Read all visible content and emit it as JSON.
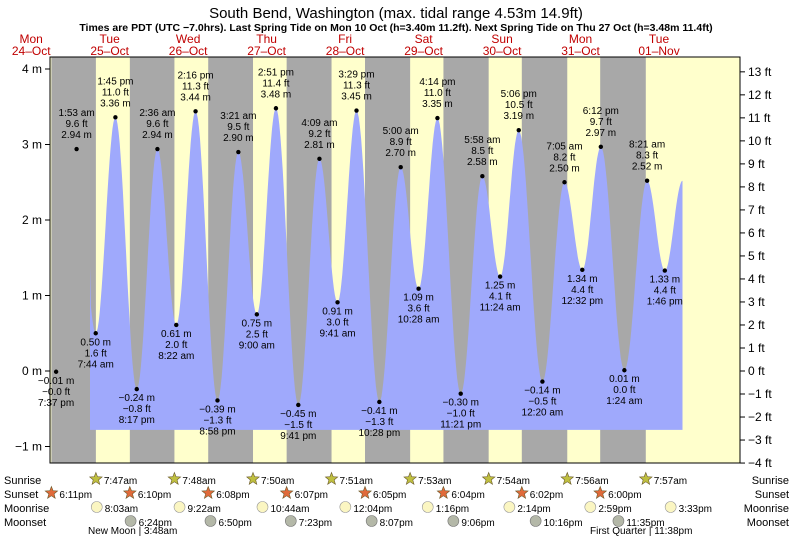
{
  "chart_data": {
    "type": "area",
    "title": "South Bend, Washington (max. tidal range 4.53m 14.9ft)",
    "subtitle": "Times are PDT (UTC −7.0hrs). Last Spring Tide on Mon 10 Oct (h=3.40m 11.2ft). Next Spring Tide on Thu 27 Oct (h=3.48m 11.4ft)",
    "days": [
      {
        "dow": "Mon",
        "date": "24–Oct"
      },
      {
        "dow": "Tue",
        "date": "25–Oct"
      },
      {
        "dow": "Wed",
        "date": "26–Oct"
      },
      {
        "dow": "Thu",
        "date": "27–Oct"
      },
      {
        "dow": "Fri",
        "date": "28–Oct"
      },
      {
        "dow": "Sat",
        "date": "29–Oct"
      },
      {
        "dow": "Sun",
        "date": "30–Oct"
      },
      {
        "dow": "Mon",
        "date": "31–Oct"
      },
      {
        "dow": "Tue",
        "date": "01–Nov"
      }
    ],
    "y_left": {
      "unit": "m",
      "ticks": [
        -1,
        0,
        1,
        2,
        3,
        4
      ],
      "labels": [
        "−1 m",
        "0 m",
        "1 m",
        "2 m",
        "3 m",
        "4 m"
      ],
      "range": [
        -1.25,
        4.12
      ]
    },
    "y_right": {
      "unit": "ft",
      "ticks": [
        -4,
        -3,
        -2,
        -1,
        0,
        1,
        2,
        3,
        4,
        5,
        6,
        7,
        8,
        9,
        10,
        11,
        12,
        13
      ],
      "labels": [
        "−4 ft",
        "−3 ft",
        "−2 ft",
        "−1 ft",
        "0 ft",
        "1 ft",
        "2 ft",
        "3 ft",
        "4 ft",
        "5 ft",
        "6 ft",
        "7 ft",
        "8 ft",
        "9 ft",
        "10 ft",
        "11 ft",
        "12 ft",
        "13 ft"
      ]
    },
    "tides": [
      {
        "day": 0,
        "t": 19.617,
        "m": -0.01,
        "label_m": "−0.01 m",
        "label_ft": "−0.0 ft",
        "label_time": "7:37 pm",
        "type": "low"
      },
      {
        "day": 1,
        "t": 1.883,
        "m": 2.94,
        "label_m": "2.94 m",
        "label_ft": "9.6 ft",
        "label_time": "1:53 am",
        "type": "high"
      },
      {
        "day": 1,
        "t": 7.733,
        "m": 0.5,
        "label_m": "0.50 m",
        "label_ft": "1.6 ft",
        "label_time": "7:44 am",
        "type": "low"
      },
      {
        "day": 1,
        "t": 13.75,
        "m": 3.36,
        "label_m": "3.36 m",
        "label_ft": "11.0 ft",
        "label_time": "1:45 pm",
        "type": "high"
      },
      {
        "day": 1,
        "t": 20.283,
        "m": -0.24,
        "label_m": "−0.24 m",
        "label_ft": "−0.8 ft",
        "label_time": "8:17 pm",
        "type": "low"
      },
      {
        "day": 2,
        "t": 2.6,
        "m": 2.94,
        "label_m": "2.94 m",
        "label_ft": "9.6 ft",
        "label_time": "2:36 am",
        "type": "high"
      },
      {
        "day": 2,
        "t": 8.367,
        "m": 0.61,
        "label_m": "0.61 m",
        "label_ft": "2.0 ft",
        "label_time": "8:22 am",
        "type": "low"
      },
      {
        "day": 2,
        "t": 14.267,
        "m": 3.44,
        "label_m": "3.44 m",
        "label_ft": "11.3 ft",
        "label_time": "2:16 pm",
        "type": "high"
      },
      {
        "day": 2,
        "t": 20.967,
        "m": -0.39,
        "label_m": "−0.39 m",
        "label_ft": "−1.3 ft",
        "label_time": "8:58 pm",
        "type": "low"
      },
      {
        "day": 3,
        "t": 3.35,
        "m": 2.9,
        "label_m": "2.90 m",
        "label_ft": "9.5 ft",
        "label_time": "3:21 am",
        "type": "high"
      },
      {
        "day": 3,
        "t": 9.0,
        "m": 0.75,
        "label_m": "0.75 m",
        "label_ft": "2.5 ft",
        "label_time": "9:00 am",
        "type": "low"
      },
      {
        "day": 3,
        "t": 14.85,
        "m": 3.48,
        "label_m": "3.48 m",
        "label_ft": "11.4 ft",
        "label_time": "2:51 pm",
        "type": "high"
      },
      {
        "day": 3,
        "t": 21.683,
        "m": -0.45,
        "label_m": "−0.45 m",
        "label_ft": "−1.5 ft",
        "label_time": "9:41 pm",
        "type": "low"
      },
      {
        "day": 4,
        "t": 4.15,
        "m": 2.81,
        "label_m": "2.81 m",
        "label_ft": "9.2 ft",
        "label_time": "4:09 am",
        "type": "high"
      },
      {
        "day": 4,
        "t": 9.683,
        "m": 0.91,
        "label_m": "0.91 m",
        "label_ft": "3.0 ft",
        "label_time": "9:41 am",
        "type": "low"
      },
      {
        "day": 4,
        "t": 15.483,
        "m": 3.45,
        "label_m": "3.45 m",
        "label_ft": "11.3 ft",
        "label_time": "3:29 pm",
        "type": "high"
      },
      {
        "day": 4,
        "t": 22.467,
        "m": -0.41,
        "label_m": "−0.41 m",
        "label_ft": "−1.3 ft",
        "label_time": "10:28 pm",
        "type": "low"
      },
      {
        "day": 5,
        "t": 5.0,
        "m": 2.7,
        "label_m": "2.70 m",
        "label_ft": "8.9 ft",
        "label_time": "5:00 am",
        "type": "high"
      },
      {
        "day": 5,
        "t": 10.467,
        "m": 1.09,
        "label_m": "1.09 m",
        "label_ft": "3.6 ft",
        "label_time": "10:28 am",
        "type": "low"
      },
      {
        "day": 5,
        "t": 16.233,
        "m": 3.35,
        "label_m": "3.35 m",
        "label_ft": "11.0 ft",
        "label_time": "4:14 pm",
        "type": "high"
      },
      {
        "day": 5,
        "t": 23.35,
        "m": -0.3,
        "label_m": "−0.30 m",
        "label_ft": "−1.0 ft",
        "label_time": "11:21 pm",
        "type": "low"
      },
      {
        "day": 6,
        "t": 5.967,
        "m": 2.58,
        "label_m": "2.58 m",
        "label_ft": "8.5 ft",
        "label_time": "5:58 am",
        "type": "high"
      },
      {
        "day": 6,
        "t": 11.4,
        "m": 1.25,
        "label_m": "1.25 m",
        "label_ft": "4.1 ft",
        "label_time": "11:24 am",
        "type": "low"
      },
      {
        "day": 6,
        "t": 17.1,
        "m": 3.19,
        "label_m": "3.19 m",
        "label_ft": "10.5 ft",
        "label_time": "5:06 pm",
        "type": "high"
      },
      {
        "day": 7,
        "t": 0.333,
        "m": -0.14,
        "label_m": "−0.14 m",
        "label_ft": "−0.5 ft",
        "label_time": "12:20 am",
        "type": "low"
      },
      {
        "day": 7,
        "t": 7.083,
        "m": 2.5,
        "label_m": "2.50 m",
        "label_ft": "8.2 ft",
        "label_time": "7:05 am",
        "type": "high"
      },
      {
        "day": 7,
        "t": 12.533,
        "m": 1.34,
        "label_m": "1.34 m",
        "label_ft": "4.4 ft",
        "label_time": "12:32 pm",
        "type": "low"
      },
      {
        "day": 7,
        "t": 18.2,
        "m": 2.97,
        "label_m": "2.97 m",
        "label_ft": "9.7 ft",
        "label_time": "6:12 pm",
        "type": "high"
      },
      {
        "day": 8,
        "t": 1.4,
        "m": 0.01,
        "label_m": "0.01 m",
        "label_ft": "0.0 ft",
        "label_time": "1:24 am",
        "type": "low"
      },
      {
        "day": 8,
        "t": 8.35,
        "m": 2.52,
        "label_m": "2.52 m",
        "label_ft": "8.3 ft",
        "label_time": "8:21 am",
        "type": "high"
      },
      {
        "day": 8,
        "t": 13.767,
        "m": 1.33,
        "label_m": "1.33 m",
        "label_ft": "4.4 ft",
        "label_time": "1:46 pm",
        "type": "low"
      }
    ],
    "sun": [
      {
        "day": 0,
        "sunset": "6:11pm"
      },
      {
        "day": 1,
        "sunrise": "7:47am",
        "sunset": "6:10pm"
      },
      {
        "day": 2,
        "sunrise": "7:48am",
        "sunset": "6:08pm"
      },
      {
        "day": 3,
        "sunrise": "7:50am",
        "sunset": "6:07pm"
      },
      {
        "day": 4,
        "sunrise": "7:51am",
        "sunset": "6:05pm"
      },
      {
        "day": 5,
        "sunrise": "7:53am",
        "sunset": "6:04pm"
      },
      {
        "day": 6,
        "sunrise": "7:54am",
        "sunset": "6:02pm"
      },
      {
        "day": 7,
        "sunrise": "7:56am",
        "sunset": "6:00pm"
      },
      {
        "day": 8,
        "sunrise": "7:57am"
      }
    ],
    "moonrise": [
      {
        "day": 1,
        "time": "8:03am"
      },
      {
        "day": 2,
        "time": "9:22am"
      },
      {
        "day": 3,
        "time": "10:44am"
      },
      {
        "day": 4,
        "time": "12:04pm"
      },
      {
        "day": 5,
        "time": "1:16pm"
      },
      {
        "day": 6,
        "time": "2:14pm"
      },
      {
        "day": 7,
        "time": "2:59pm"
      },
      {
        "day": 8,
        "time": "3:33pm"
      }
    ],
    "moonset": [
      {
        "day": 1,
        "time": "6:24pm"
      },
      {
        "day": 2,
        "time": "6:50pm"
      },
      {
        "day": 3,
        "time": "7:23pm"
      },
      {
        "day": 4,
        "time": "8:07pm"
      },
      {
        "day": 5,
        "time": "9:06pm"
      },
      {
        "day": 6,
        "time": "10:16pm"
      },
      {
        "day": 7,
        "time": "11:35pm"
      }
    ],
    "moon_phases": [
      {
        "text": "New Moon | 3:48am"
      },
      {
        "text": "First Quarter | 11:38pm"
      }
    ],
    "row_labels": {
      "sunrise": "Sunrise",
      "sunset": "Sunset",
      "moonrise": "Moonrise",
      "moonset": "Moonset"
    },
    "colors": {
      "water": "#9fa9fc",
      "day": "#ffffcc",
      "night": "#a8a8a8",
      "sunrise_star": "#bfbf40",
      "sunset_star": "#e06a3a",
      "moonrise": "#fbf6c2",
      "moonset": "#b4b8a8",
      "date_text": "#c00000"
    }
  }
}
